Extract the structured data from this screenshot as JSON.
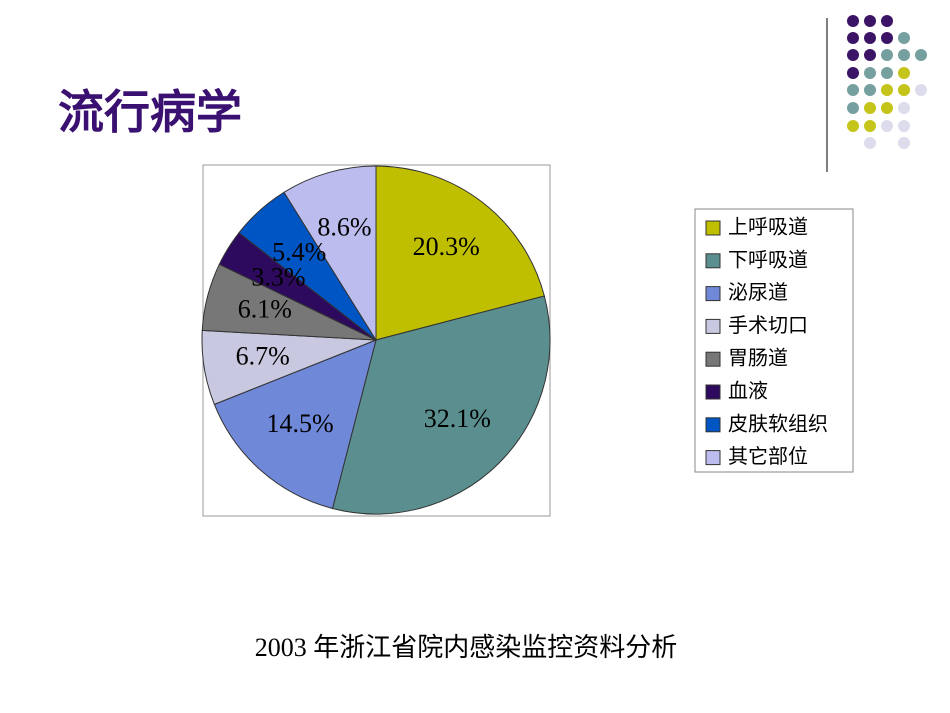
{
  "chart_data": {
    "type": "pie",
    "title": "流行病学",
    "categories": [
      "上呼吸道",
      "下呼吸道",
      "泌尿道",
      "手术切口",
      "胃肠道",
      "血液",
      "皮肤软组织",
      "其它部位"
    ],
    "values": [
      20.3,
      32.1,
      14.5,
      6.7,
      6.1,
      3.3,
      5.4,
      8.6
    ],
    "value_labels": [
      "20.3%",
      "32.1%",
      "14.5%",
      "6.7%",
      "6.1%",
      "3.3%",
      "5.4%",
      "8.6%"
    ],
    "colors": [
      "#bfbf00",
      "#5b8f8f",
      "#7088d8",
      "#c8c8e0",
      "#777777",
      "#2e0a5e",
      "#0055c4",
      "#bcbcee"
    ],
    "legend": "right",
    "caption": "2003 年浙江省院内感染监控资料分析"
  }
}
